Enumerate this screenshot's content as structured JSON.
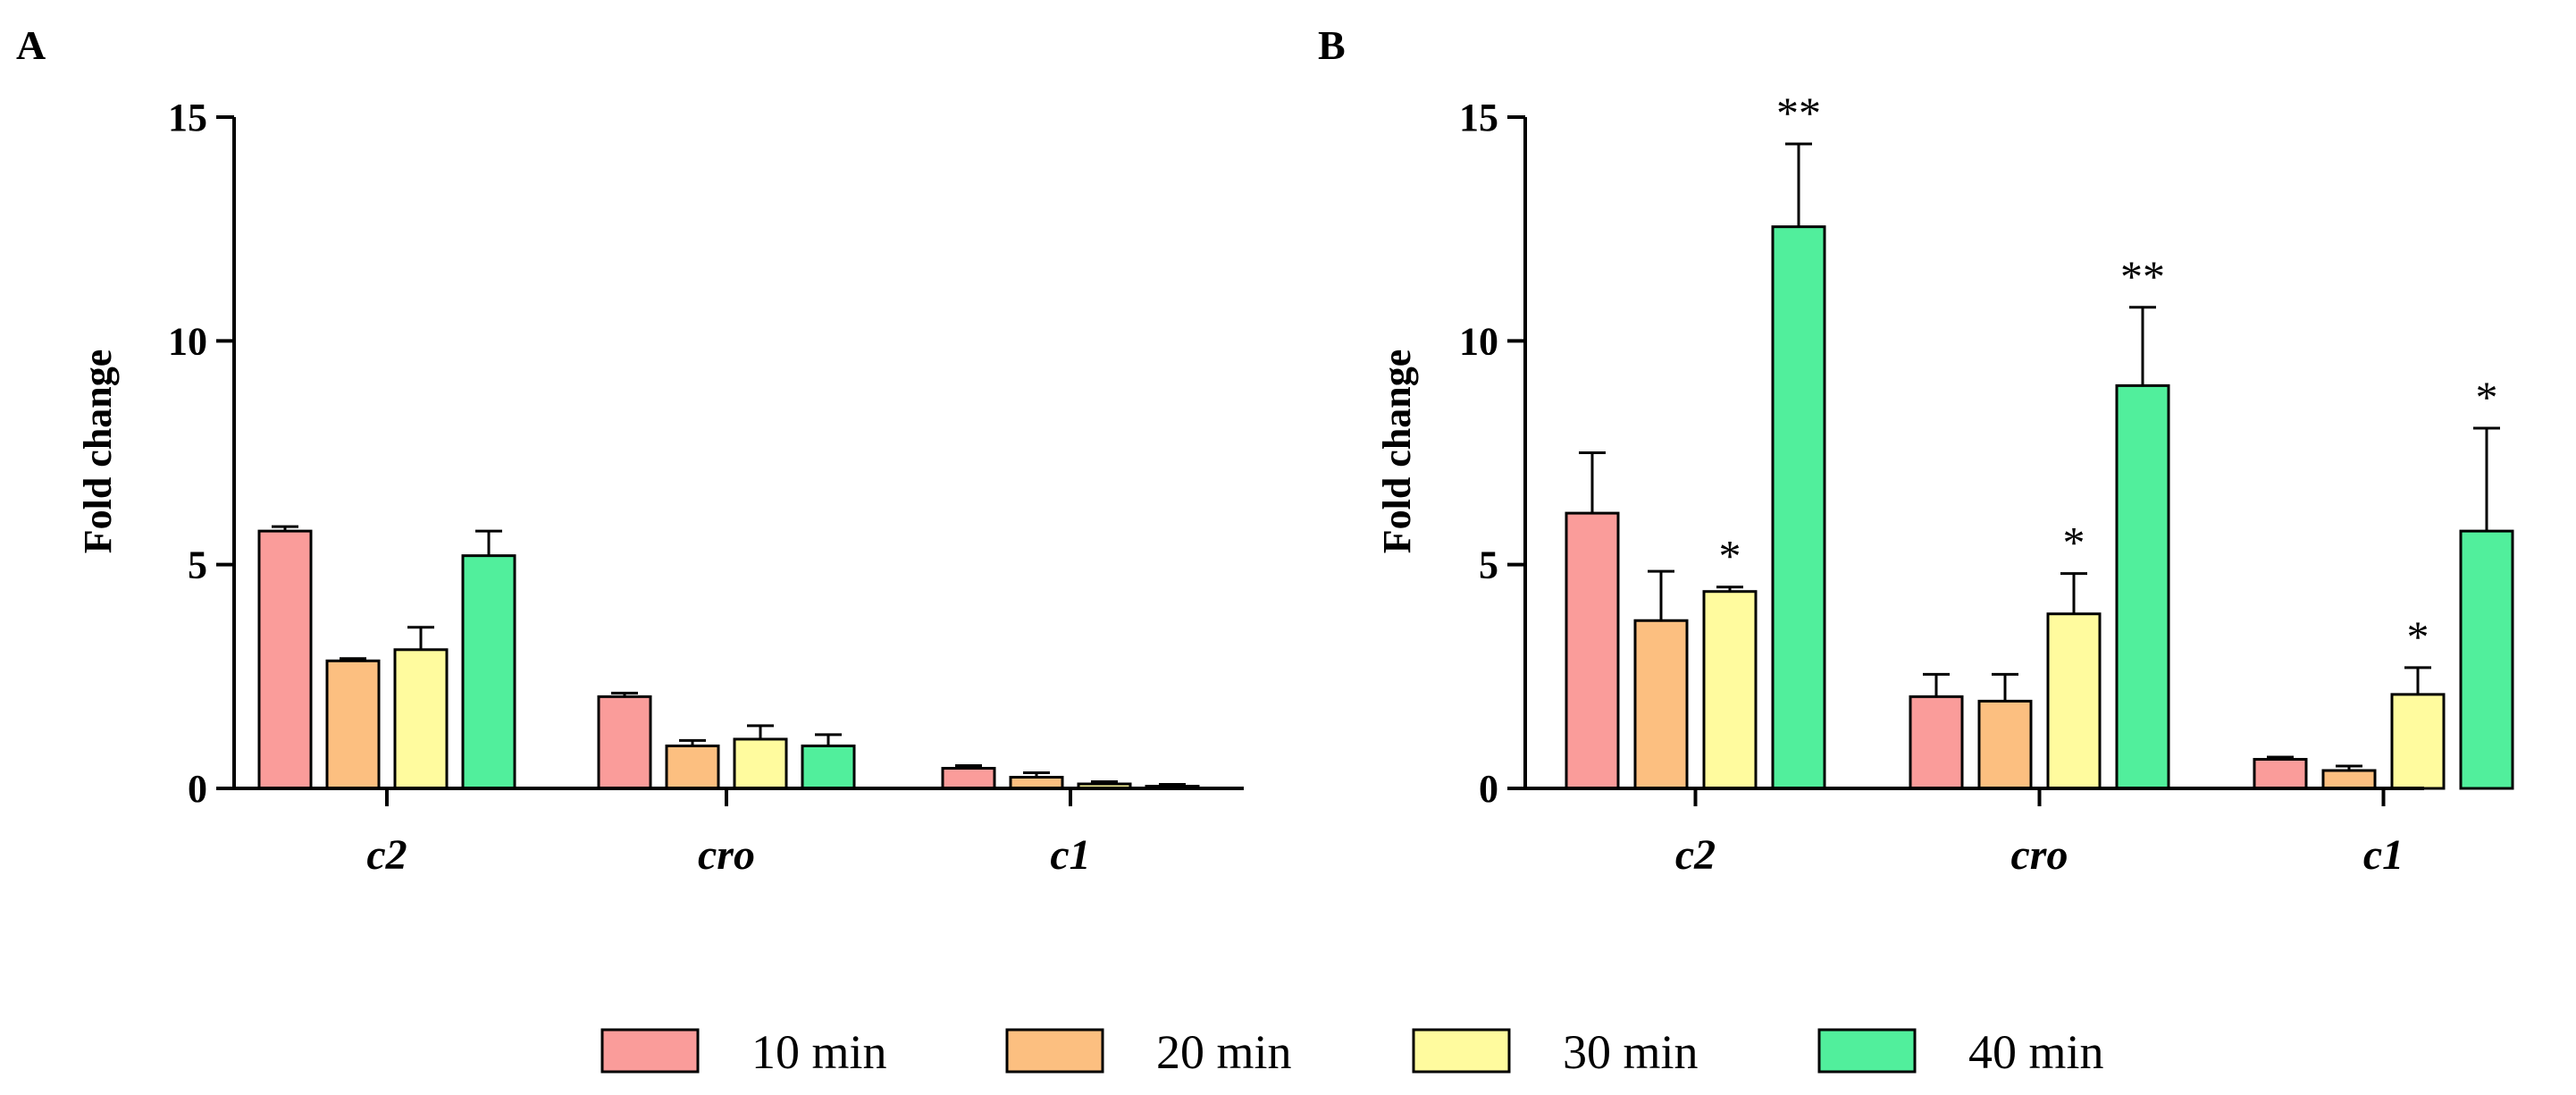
{
  "legend": [
    {
      "label": "10 min",
      "color": "#FA9C9A"
    },
    {
      "label": "20 min",
      "color": "#FCBF80"
    },
    {
      "label": "30 min",
      "color": "#FFFB9E"
    },
    {
      "label": "40 min",
      "color": "#51EF9C"
    }
  ],
  "chart_data": [
    {
      "type": "bar",
      "panel": "A",
      "title": "",
      "xlabel": "",
      "ylabel": "Fold change",
      "ylim": [
        0,
        15
      ],
      "yticks": [
        0,
        5,
        10,
        15
      ],
      "categories": [
        "c2",
        "cro",
        "c1"
      ],
      "legend_position": "bottom",
      "series": [
        {
          "name": "10 min",
          "values": [
            5.75,
            2.05,
            0.45
          ],
          "errors": [
            0.1,
            0.08,
            0.06
          ],
          "significance": [
            "",
            "",
            ""
          ]
        },
        {
          "name": "20 min",
          "values": [
            2.85,
            0.95,
            0.25
          ],
          "errors": [
            0.05,
            0.12,
            0.1
          ],
          "significance": [
            "",
            "",
            ""
          ]
        },
        {
          "name": "30 min",
          "values": [
            3.1,
            1.1,
            0.1
          ],
          "errors": [
            0.5,
            0.3,
            0.05
          ],
          "significance": [
            "",
            "",
            ""
          ]
        },
        {
          "name": "40 min",
          "values": [
            5.2,
            0.95,
            0.05
          ],
          "errors": [
            0.55,
            0.25,
            0.04
          ],
          "significance": [
            "",
            "",
            ""
          ]
        }
      ]
    },
    {
      "type": "bar",
      "panel": "B",
      "title": "",
      "xlabel": "",
      "ylabel": "Fold change",
      "ylim": [
        0,
        15
      ],
      "yticks": [
        0,
        5,
        10,
        15
      ],
      "categories": [
        "c2",
        "cro",
        "c1"
      ],
      "legend_position": "bottom",
      "series": [
        {
          "name": "10 min",
          "values": [
            6.15,
            2.05,
            0.65
          ],
          "errors": [
            1.35,
            0.5,
            0.05
          ],
          "significance": [
            "",
            "",
            ""
          ]
        },
        {
          "name": "20 min",
          "values": [
            3.75,
            1.95,
            0.4
          ],
          "errors": [
            1.1,
            0.6,
            0.1
          ],
          "significance": [
            "",
            "",
            ""
          ]
        },
        {
          "name": "30 min",
          "values": [
            4.4,
            3.9,
            2.1
          ],
          "errors": [
            0.1,
            0.9,
            0.6
          ],
          "significance": [
            "*",
            "*",
            "*"
          ]
        },
        {
          "name": "40 min",
          "values": [
            12.55,
            9.0,
            5.75
          ],
          "errors": [
            1.85,
            1.75,
            2.3
          ],
          "significance": [
            "**",
            "**",
            "*"
          ]
        }
      ]
    }
  ]
}
